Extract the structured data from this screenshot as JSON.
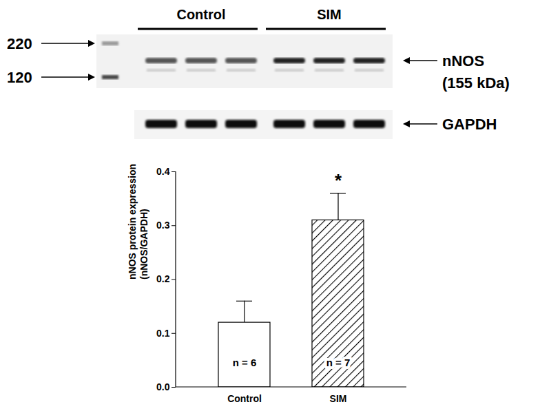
{
  "chart_data": {
    "type": "bar",
    "categories": [
      "Control",
      "SIM"
    ],
    "values": [
      0.12,
      0.31
    ],
    "error": [
      0.04,
      0.05
    ],
    "colors": [
      "#ffffff",
      "#000000"
    ],
    "ylabel": "nNOS protein expression\n(nNOS/GAPDH)",
    "ylim": [
      0,
      0.4
    ],
    "yticks": [
      {
        "value": 0,
        "label": "0.0"
      },
      0.1,
      0.2,
      0.3,
      0.4
    ],
    "annotations": [
      {
        "category": "SIM",
        "text": "*"
      }
    ],
    "bar_labels": [
      "n = 6",
      "n = 7"
    ]
  },
  "blot": {
    "groups": [
      {
        "label": "Control",
        "lanes": 3
      },
      {
        "label": "SIM",
        "lanes": 3
      }
    ],
    "ladder": [
      220,
      120
    ],
    "bands": [
      {
        "label": "nNOS",
        "detail": "(155 kDa)"
      },
      {
        "label": "GAPDH"
      }
    ]
  }
}
